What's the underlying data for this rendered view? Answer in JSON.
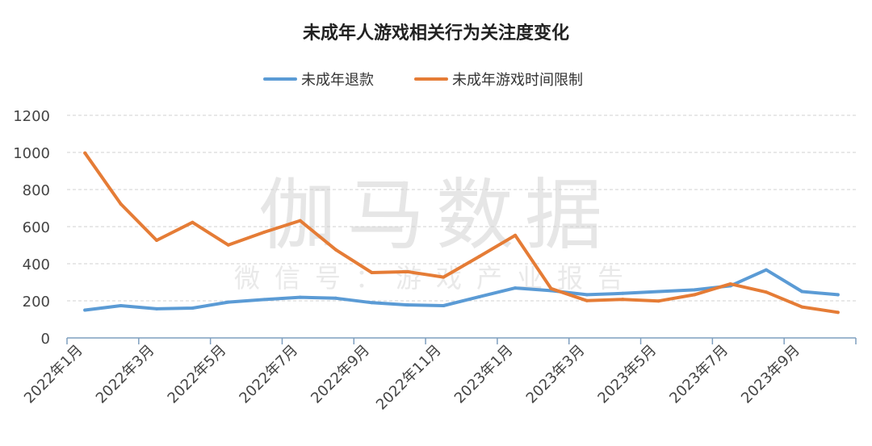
{
  "chart_data": {
    "type": "line",
    "title": "未成年人游戏相关行为关注度变化",
    "watermark": {
      "main": "伽马数据",
      "sub": "微信号：游戏产业报告"
    },
    "xlabel": "",
    "ylabel": "",
    "ylim": [
      0,
      1200
    ],
    "yticks": [
      "0",
      "200",
      "400",
      "600",
      "800",
      "1000",
      "1200"
    ],
    "grid": true,
    "legend_position": "top",
    "x": [
      "2022年1月",
      "2022年2月",
      "2022年3月",
      "2022年4月",
      "2022年5月",
      "2022年6月",
      "2022年7月",
      "2022年8月",
      "2022年9月",
      "2022年10月",
      "2022年11月",
      "2022年12月",
      "2023年1月",
      "2023年2月",
      "2023年3月",
      "2023年4月",
      "2023年5月",
      "2023年6月",
      "2023年7月",
      "2023年8月",
      "2023年9月",
      "2023年10月"
    ],
    "xtick_labels": [
      "2022年1月",
      "2022年3月",
      "2022年5月",
      "2022年7月",
      "2022年9月",
      "2022年11月",
      "2023年1月",
      "2023年3月",
      "2023年5月",
      "2023年7月",
      "2023年9月"
    ],
    "series": [
      {
        "name": "未成年退款",
        "color": "#5b9bd5",
        "values": [
          150,
          174,
          157,
          161,
          193,
          207,
          219,
          214,
          190,
          178,
          174,
          222,
          269,
          255,
          233,
          240,
          250,
          259,
          281,
          367,
          250,
          233
        ]
      },
      {
        "name": "未成年游戏时间限制",
        "color": "#e57c36",
        "values": [
          997,
          722,
          526,
          623,
          501,
          570,
          632,
          475,
          352,
          357,
          328,
          439,
          553,
          266,
          201,
          208,
          199,
          233,
          291,
          247,
          167,
          138
        ]
      }
    ]
  }
}
